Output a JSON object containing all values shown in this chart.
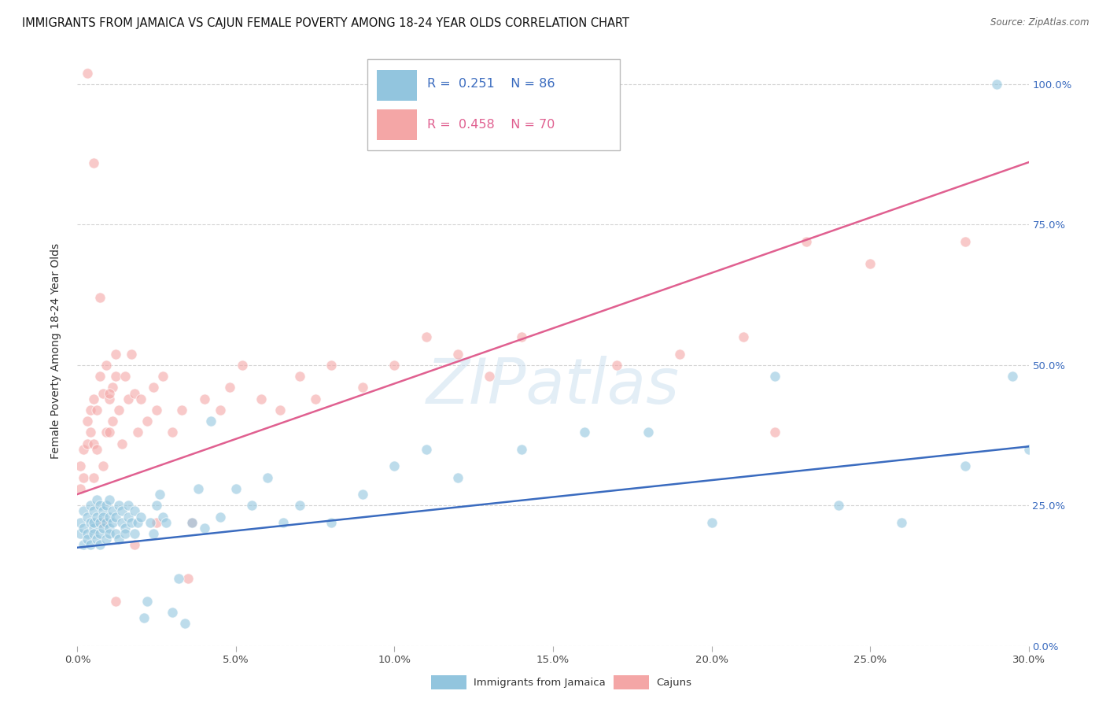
{
  "title": "IMMIGRANTS FROM JAMAICA VS CAJUN FEMALE POVERTY AMONG 18-24 YEAR OLDS CORRELATION CHART",
  "source": "Source: ZipAtlas.com",
  "ylabel_label": "Female Poverty Among 18-24 Year Olds",
  "legend_label1": "Immigrants from Jamaica",
  "legend_label2": "Cajuns",
  "legend_R1": "0.251",
  "legend_N1": "86",
  "legend_R2": "0.458",
  "legend_N2": "70",
  "color_blue": "#92c5de",
  "color_pink": "#f4a6a6",
  "color_blue_line": "#3a6bbf",
  "color_pink_line": "#e06090",
  "xmin": 0.0,
  "xmax": 0.3,
  "ymin": 0.0,
  "ymax": 1.05,
  "blue_intercept": 0.175,
  "blue_slope": 0.6,
  "pink_intercept": 0.27,
  "pink_slope": 1.97,
  "blue_x": [
    0.001,
    0.001,
    0.002,
    0.002,
    0.002,
    0.003,
    0.003,
    0.003,
    0.004,
    0.004,
    0.004,
    0.005,
    0.005,
    0.005,
    0.005,
    0.006,
    0.006,
    0.006,
    0.007,
    0.007,
    0.007,
    0.007,
    0.008,
    0.008,
    0.008,
    0.009,
    0.009,
    0.009,
    0.01,
    0.01,
    0.01,
    0.01,
    0.011,
    0.011,
    0.012,
    0.012,
    0.013,
    0.013,
    0.014,
    0.014,
    0.015,
    0.015,
    0.016,
    0.016,
    0.017,
    0.018,
    0.018,
    0.019,
    0.02,
    0.021,
    0.022,
    0.023,
    0.024,
    0.025,
    0.026,
    0.027,
    0.028,
    0.03,
    0.032,
    0.034,
    0.036,
    0.038,
    0.04,
    0.042,
    0.045,
    0.05,
    0.055,
    0.06,
    0.065,
    0.07,
    0.08,
    0.09,
    0.1,
    0.11,
    0.12,
    0.14,
    0.16,
    0.18,
    0.2,
    0.22,
    0.24,
    0.26,
    0.28,
    0.29,
    0.295,
    0.3
  ],
  "blue_y": [
    0.2,
    0.22,
    0.18,
    0.21,
    0.24,
    0.2,
    0.23,
    0.19,
    0.22,
    0.25,
    0.18,
    0.21,
    0.24,
    0.2,
    0.22,
    0.23,
    0.26,
    0.19,
    0.22,
    0.25,
    0.2,
    0.18,
    0.24,
    0.21,
    0.23,
    0.22,
    0.25,
    0.19,
    0.23,
    0.26,
    0.21,
    0.2,
    0.24,
    0.22,
    0.23,
    0.2,
    0.25,
    0.19,
    0.22,
    0.24,
    0.21,
    0.2,
    0.23,
    0.25,
    0.22,
    0.24,
    0.2,
    0.22,
    0.23,
    0.05,
    0.08,
    0.22,
    0.2,
    0.25,
    0.27,
    0.23,
    0.22,
    0.06,
    0.12,
    0.04,
    0.22,
    0.28,
    0.21,
    0.4,
    0.23,
    0.28,
    0.25,
    0.3,
    0.22,
    0.25,
    0.22,
    0.27,
    0.32,
    0.35,
    0.3,
    0.35,
    0.38,
    0.38,
    0.22,
    0.48,
    0.25,
    0.22,
    0.32,
    1.0,
    0.48,
    0.35
  ],
  "pink_x": [
    0.001,
    0.001,
    0.002,
    0.002,
    0.003,
    0.003,
    0.004,
    0.004,
    0.005,
    0.005,
    0.005,
    0.006,
    0.006,
    0.007,
    0.007,
    0.008,
    0.008,
    0.009,
    0.009,
    0.01,
    0.01,
    0.011,
    0.011,
    0.012,
    0.012,
    0.013,
    0.014,
    0.015,
    0.016,
    0.017,
    0.018,
    0.019,
    0.02,
    0.022,
    0.024,
    0.025,
    0.027,
    0.03,
    0.033,
    0.036,
    0.04,
    0.045,
    0.048,
    0.052,
    0.058,
    0.064,
    0.07,
    0.075,
    0.08,
    0.09,
    0.1,
    0.11,
    0.12,
    0.13,
    0.14,
    0.17,
    0.19,
    0.21,
    0.23,
    0.25,
    0.003,
    0.005,
    0.008,
    0.01,
    0.012,
    0.018,
    0.025,
    0.035,
    0.22,
    0.28
  ],
  "pink_y": [
    0.28,
    0.32,
    0.3,
    0.35,
    0.36,
    0.4,
    0.38,
    0.42,
    0.3,
    0.36,
    0.44,
    0.35,
    0.42,
    0.48,
    0.62,
    0.45,
    0.32,
    0.38,
    0.5,
    0.44,
    0.38,
    0.4,
    0.46,
    0.52,
    0.48,
    0.42,
    0.36,
    0.48,
    0.44,
    0.52,
    0.45,
    0.38,
    0.44,
    0.4,
    0.46,
    0.42,
    0.48,
    0.38,
    0.42,
    0.22,
    0.44,
    0.42,
    0.46,
    0.5,
    0.44,
    0.42,
    0.48,
    0.44,
    0.5,
    0.46,
    0.5,
    0.55,
    0.52,
    0.48,
    0.55,
    0.5,
    0.52,
    0.55,
    0.72,
    0.68,
    1.02,
    0.86,
    0.22,
    0.45,
    0.08,
    0.18,
    0.22,
    0.12,
    0.38,
    0.72
  ],
  "background_color": "#ffffff",
  "grid_color": "#d0d0d0",
  "title_fontsize": 10.5,
  "axis_fontsize": 10,
  "tick_fontsize": 9.5
}
